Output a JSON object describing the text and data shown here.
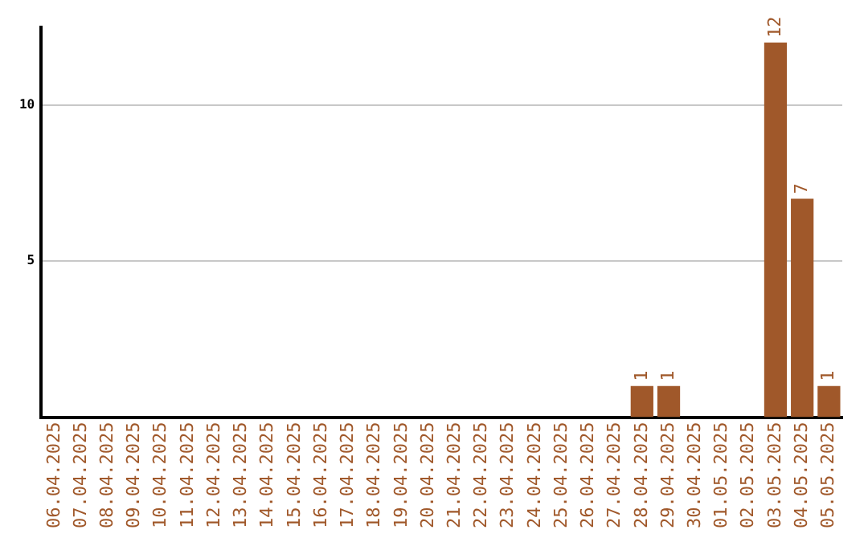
{
  "chart_data": {
    "type": "bar",
    "categories": [
      "06.04.2025",
      "07.04.2025",
      "08.04.2025",
      "09.04.2025",
      "10.04.2025",
      "11.04.2025",
      "12.04.2025",
      "13.04.2025",
      "14.04.2025",
      "15.04.2025",
      "16.04.2025",
      "17.04.2025",
      "18.04.2025",
      "19.04.2025",
      "20.04.2025",
      "21.04.2025",
      "22.04.2025",
      "23.04.2025",
      "24.04.2025",
      "25.04.2025",
      "26.04.2025",
      "27.04.2025",
      "28.04.2025",
      "29.04.2025",
      "30.04.2025",
      "01.05.2025",
      "02.05.2025",
      "03.05.2025",
      "04.05.2025",
      "05.05.2025"
    ],
    "values": [
      0,
      0,
      0,
      0,
      0,
      0,
      0,
      0,
      0,
      0,
      0,
      0,
      0,
      0,
      0,
      0,
      0,
      0,
      0,
      0,
      0,
      0,
      1,
      1,
      0,
      0,
      0,
      12,
      7,
      1
    ],
    "value_labels": [
      null,
      null,
      null,
      null,
      null,
      null,
      null,
      null,
      null,
      null,
      null,
      null,
      null,
      null,
      null,
      null,
      null,
      null,
      null,
      null,
      null,
      null,
      "1",
      "1",
      null,
      null,
      null,
      "12",
      "7",
      "1"
    ],
    "color": "#a0582a",
    "ylim": [
      0,
      12.5
    ],
    "yticks": [
      5,
      10
    ],
    "grid": "y",
    "legend": false
  }
}
